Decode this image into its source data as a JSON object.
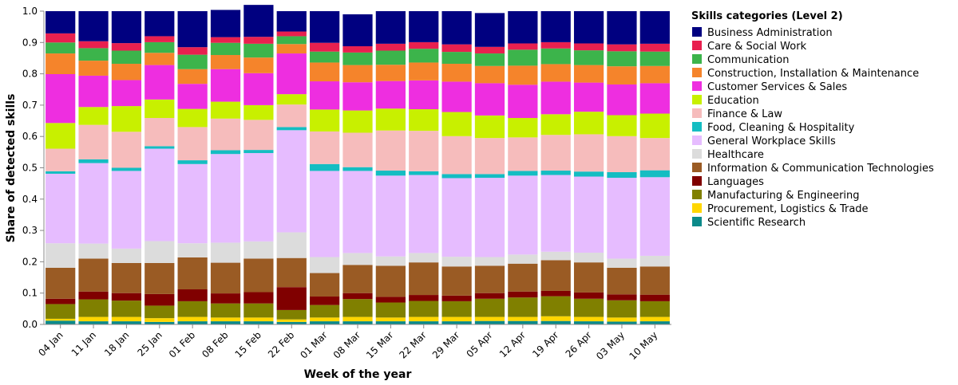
{
  "chart_data": {
    "type": "bar",
    "stacked": true,
    "xlabel": "Week of the year",
    "ylabel": "Share of detected skills",
    "ylim": [
      0,
      1
    ],
    "yticks": [
      "0.0",
      "0.1",
      "0.2",
      "0.3",
      "0.4",
      "0.5",
      "0.6",
      "0.7",
      "0.8",
      "0.9",
      "1.0"
    ],
    "grid": false,
    "legend_title": "Skills categories (Level 2)",
    "legend_position": "right",
    "categories": [
      "04 Jan",
      "11 Jan",
      "18 Jan",
      "25 Jan",
      "01 Feb",
      "08 Feb",
      "15 Feb",
      "22 Feb",
      "01 Mar",
      "08 Mar",
      "15 Mar",
      "22 Mar",
      "29 Mar",
      "05 Apr",
      "12 Apr",
      "19 Apr",
      "26 Apr",
      "03 May",
      "10 May"
    ],
    "series": [
      {
        "name": "Scientific Research",
        "color": "#0b8a8a",
        "values": [
          0.012,
          0.01,
          0.01,
          0.008,
          0.01,
          0.01,
          0.01,
          0.008,
          0.01,
          0.01,
          0.01,
          0.01,
          0.01,
          0.011,
          0.011,
          0.011,
          0.01,
          0.009,
          0.01
        ]
      },
      {
        "name": "Procurement, Logistics & Trade",
        "color": "#ffd600",
        "values": [
          0.006,
          0.014,
          0.014,
          0.012,
          0.014,
          0.012,
          0.012,
          0.008,
          0.012,
          0.014,
          0.012,
          0.014,
          0.014,
          0.013,
          0.013,
          0.015,
          0.014,
          0.013,
          0.014
        ]
      },
      {
        "name": "Manufacturing & Engineering",
        "color": "#808000",
        "values": [
          0.047,
          0.056,
          0.052,
          0.04,
          0.05,
          0.045,
          0.045,
          0.03,
          0.04,
          0.057,
          0.048,
          0.051,
          0.05,
          0.058,
          0.062,
          0.064,
          0.058,
          0.055,
          0.05
        ]
      },
      {
        "name": "Languages",
        "color": "#800000",
        "values": [
          0.017,
          0.025,
          0.024,
          0.037,
          0.038,
          0.032,
          0.036,
          0.073,
          0.027,
          0.019,
          0.018,
          0.019,
          0.018,
          0.018,
          0.019,
          0.017,
          0.02,
          0.019,
          0.021
        ]
      },
      {
        "name": "Information & Communication Technologies",
        "color": "#9a5b24",
        "values": [
          0.099,
          0.105,
          0.096,
          0.099,
          0.102,
          0.098,
          0.107,
          0.093,
          0.075,
          0.09,
          0.099,
          0.104,
          0.093,
          0.087,
          0.089,
          0.098,
          0.096,
          0.085,
          0.09
        ]
      },
      {
        "name": "Healthcare",
        "color": "#dcdcdc",
        "values": [
          0.078,
          0.048,
          0.046,
          0.07,
          0.045,
          0.064,
          0.055,
          0.082,
          0.051,
          0.038,
          0.03,
          0.03,
          0.031,
          0.028,
          0.029,
          0.027,
          0.031,
          0.029,
          0.034
        ]
      },
      {
        "name": "General Workplace Skills",
        "color": "#e6bcff",
        "values": [
          0.222,
          0.257,
          0.248,
          0.295,
          0.253,
          0.283,
          0.282,
          0.326,
          0.275,
          0.262,
          0.258,
          0.249,
          0.251,
          0.253,
          0.252,
          0.245,
          0.243,
          0.258,
          0.251
        ]
      },
      {
        "name": "Food, Cleaning & Hospitality",
        "color": "#14bdc2",
        "values": [
          0.008,
          0.012,
          0.01,
          0.008,
          0.012,
          0.012,
          0.01,
          0.01,
          0.022,
          0.012,
          0.016,
          0.012,
          0.013,
          0.012,
          0.015,
          0.014,
          0.016,
          0.018,
          0.022
        ]
      },
      {
        "name": "Finance & Law",
        "color": "#f6bcbc",
        "values": [
          0.072,
          0.11,
          0.115,
          0.09,
          0.106,
          0.101,
          0.096,
          0.072,
          0.104,
          0.11,
          0.128,
          0.129,
          0.121,
          0.115,
          0.107,
          0.114,
          0.119,
          0.115,
          0.103
        ]
      },
      {
        "name": "Education",
        "color": "#c8f000",
        "values": [
          0.082,
          0.057,
          0.082,
          0.059,
          0.058,
          0.054,
          0.047,
          0.033,
          0.07,
          0.071,
          0.07,
          0.069,
          0.077,
          0.072,
          0.062,
          0.066,
          0.072,
          0.067,
          0.078
        ]
      },
      {
        "name": "Customer Services & Sales",
        "color": "#ee2ee0",
        "values": [
          0.156,
          0.1,
          0.083,
          0.11,
          0.08,
          0.104,
          0.102,
          0.13,
          0.09,
          0.09,
          0.088,
          0.092,
          0.097,
          0.103,
          0.106,
          0.104,
          0.093,
          0.098,
          0.097
        ]
      },
      {
        "name": "Construction, Installation & Maintenance",
        "color": "#f5842b",
        "values": [
          0.066,
          0.048,
          0.052,
          0.039,
          0.047,
          0.045,
          0.05,
          0.03,
          0.06,
          0.055,
          0.052,
          0.057,
          0.057,
          0.055,
          0.061,
          0.056,
          0.056,
          0.058,
          0.055
        ]
      },
      {
        "name": "Communication",
        "color": "#3cb44b",
        "values": [
          0.035,
          0.04,
          0.042,
          0.034,
          0.046,
          0.039,
          0.044,
          0.025,
          0.035,
          0.04,
          0.045,
          0.044,
          0.038,
          0.04,
          0.051,
          0.05,
          0.047,
          0.048,
          0.046
        ]
      },
      {
        "name": "Care & Social Work",
        "color": "#e8204f",
        "values": [
          0.029,
          0.022,
          0.024,
          0.019,
          0.024,
          0.018,
          0.022,
          0.015,
          0.028,
          0.02,
          0.022,
          0.021,
          0.024,
          0.021,
          0.02,
          0.02,
          0.022,
          0.022,
          0.025
        ]
      },
      {
        "name": "Business Administration",
        "color": "#000080",
        "values": [
          0.071,
          0.096,
          0.102,
          0.08,
          0.115,
          0.087,
          0.102,
          0.065,
          0.101,
          0.102,
          0.104,
          0.099,
          0.106,
          0.108,
          0.103,
          0.099,
          0.103,
          0.106,
          0.104
        ]
      }
    ]
  },
  "legend_order": [
    "Business Administration",
    "Care & Social Work",
    "Communication",
    "Construction, Installation & Maintenance",
    "Customer Services & Sales",
    "Education",
    "Finance & Law",
    "Food, Cleaning & Hospitality",
    "General Workplace Skills",
    "Healthcare",
    "Information & Communication Technologies",
    "Languages",
    "Manufacturing & Engineering",
    "Procurement, Logistics & Trade",
    "Scientific Research"
  ]
}
